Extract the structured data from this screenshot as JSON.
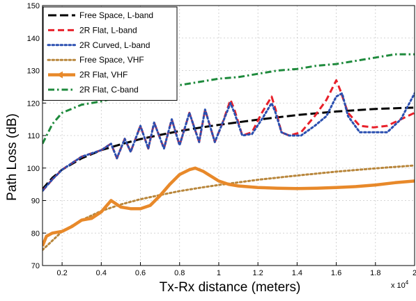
{
  "chart_data": {
    "type": "line",
    "xlabel": "Tx-Rx distance (meters)",
    "ylabel": "Path Loss (dB)",
    "x_multiplier_label": "x 10",
    "x_multiplier_exp": "4",
    "xlim": [
      0.1,
      2.0
    ],
    "ylim": [
      70,
      150
    ],
    "xticks": [
      0.2,
      0.4,
      0.6,
      0.8,
      1.0,
      1.2,
      1.4,
      1.6,
      1.8,
      2.0
    ],
    "xtick_labels": [
      "0.2",
      "0.4",
      "0.6",
      "0.8",
      "1",
      "1.2",
      "1.4",
      "1.6",
      "1.8",
      "2"
    ],
    "yticks": [
      70,
      80,
      90,
      100,
      110,
      120,
      130,
      140,
      150
    ],
    "ytick_labels": [
      "70",
      "80",
      "90",
      "100",
      "110",
      "120",
      "130",
      "140",
      "150"
    ],
    "grid": true,
    "legend_position": "top-left",
    "series": [
      {
        "name": "Free Space, L-band",
        "color": "#000000",
        "dash": "long-dash",
        "marker": "none",
        "x": [
          0.1,
          0.15,
          0.2,
          0.3,
          0.4,
          0.5,
          0.6,
          0.7,
          0.8,
          0.9,
          1.0,
          1.2,
          1.4,
          1.6,
          1.8,
          2.0
        ],
        "y": [
          93.5,
          97,
          99.5,
          103,
          105.5,
          107.3,
          108.9,
          110.2,
          111.4,
          112.4,
          113.3,
          114.9,
          116.3,
          117.4,
          118.2,
          118.6
        ]
      },
      {
        "name": "2R Flat, L-band",
        "color": "#e8202a",
        "dash": "dash",
        "marker": "none",
        "x": [
          0.1,
          0.15,
          0.2,
          0.25,
          0.3,
          0.35,
          0.4,
          0.45,
          0.48,
          0.52,
          0.55,
          0.6,
          0.64,
          0.67,
          0.72,
          0.76,
          0.8,
          0.85,
          0.9,
          0.93,
          0.98,
          1.02,
          1.06,
          1.08,
          1.12,
          1.17,
          1.22,
          1.27,
          1.29,
          1.32,
          1.36,
          1.42,
          1.49,
          1.55,
          1.6,
          1.62,
          1.66,
          1.72,
          1.79,
          1.86,
          1.93,
          2.0
        ],
        "y": [
          93,
          96.5,
          99.5,
          101.5,
          103.5,
          104.5,
          105.5,
          107.5,
          103,
          109,
          105,
          113,
          106,
          114,
          106,
          115,
          107,
          117,
          108,
          118,
          108,
          114,
          121,
          118,
          110,
          111,
          117,
          122,
          118,
          111,
          110,
          111,
          116,
          121,
          127,
          124,
          117,
          113,
          112.5,
          113,
          115,
          117
        ]
      },
      {
        "name": "2R Curved, L-band",
        "color": "#2a4fb0",
        "dash": "dot",
        "marker": "none",
        "x": [
          0.1,
          0.15,
          0.2,
          0.25,
          0.3,
          0.35,
          0.4,
          0.45,
          0.48,
          0.52,
          0.55,
          0.6,
          0.64,
          0.67,
          0.72,
          0.76,
          0.8,
          0.85,
          0.9,
          0.93,
          0.98,
          1.02,
          1.06,
          1.08,
          1.12,
          1.17,
          1.22,
          1.27,
          1.29,
          1.32,
          1.36,
          1.42,
          1.49,
          1.55,
          1.6,
          1.63,
          1.66,
          1.72,
          1.79,
          1.86,
          1.93,
          2.0
        ],
        "y": [
          93,
          96.5,
          99.5,
          101.5,
          103.5,
          104.5,
          105.5,
          107.5,
          103,
          109,
          105,
          113,
          106,
          114,
          106,
          115,
          107,
          117,
          108,
          118,
          108,
          114,
          120,
          117,
          110,
          110.5,
          115,
          120,
          117,
          111,
          110,
          110,
          113,
          116,
          122,
          123,
          116,
          111,
          111,
          111,
          115,
          123
        ]
      },
      {
        "name": "Free Space, VHF",
        "color": "#b8863b",
        "dash": "dot",
        "marker": "none",
        "x": [
          0.1,
          0.2,
          0.3,
          0.4,
          0.5,
          0.6,
          0.7,
          0.8,
          0.9,
          1.0,
          1.2,
          1.4,
          1.6,
          1.8,
          2.0
        ],
        "y": [
          74.8,
          80.5,
          84,
          86.8,
          88.8,
          90.4,
          91.7,
          92.9,
          93.9,
          94.8,
          96.4,
          97.7,
          98.9,
          99.9,
          100.8
        ]
      },
      {
        "name": "2R Flat, VHF",
        "color": "#e8892a",
        "dash": "solid",
        "marker": "arrow",
        "x": [
          0.1,
          0.12,
          0.15,
          0.2,
          0.25,
          0.3,
          0.35,
          0.4,
          0.45,
          0.5,
          0.55,
          0.6,
          0.65,
          0.7,
          0.75,
          0.8,
          0.85,
          0.88,
          0.92,
          0.96,
          1.0,
          1.05,
          1.1,
          1.2,
          1.3,
          1.4,
          1.5,
          1.6,
          1.7,
          1.8,
          1.9,
          2.0
        ],
        "y": [
          76,
          79,
          80,
          80.5,
          82,
          84,
          84.5,
          86.5,
          90,
          88,
          87.5,
          87.5,
          88.5,
          91.5,
          95,
          98,
          99.5,
          100,
          99,
          97.5,
          96,
          95,
          94.5,
          94,
          93.8,
          93.7,
          93.8,
          94,
          94.3,
          94.8,
          95.5,
          96
        ]
      },
      {
        "name": "2R Flat, C-band",
        "color": "#1e8a3c",
        "dash": "dash-dot",
        "marker": "none",
        "x": [
          0.1,
          0.15,
          0.2,
          0.3,
          0.4,
          0.5,
          0.6,
          0.7,
          0.8,
          0.9,
          1.0,
          1.1,
          1.2,
          1.3,
          1.4,
          1.5,
          1.6,
          1.7,
          1.8,
          1.9,
          2.0
        ],
        "y": [
          107.5,
          113.5,
          117,
          119.5,
          120.5,
          122,
          123,
          124.5,
          125.5,
          126.5,
          127.5,
          128,
          129,
          130,
          130.5,
          131.5,
          132,
          133,
          134,
          135,
          135
        ]
      }
    ]
  }
}
